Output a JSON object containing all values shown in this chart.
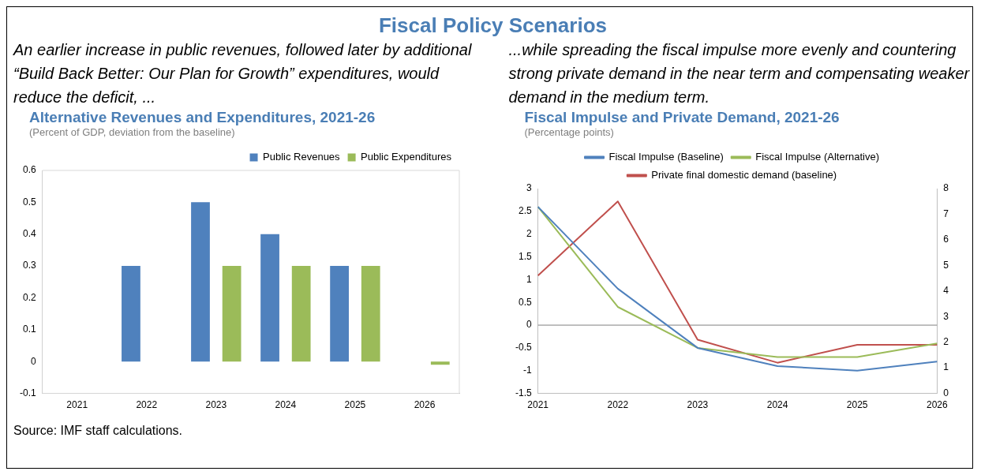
{
  "chart_data": [
    {
      "type": "other",
      "title": "Fiscal Policy Scenarios"
    },
    {
      "type": "bar",
      "title": "Alternative Revenues and Expenditures, 2021-26",
      "subtitle": "(Percent of GDP, deviation from the baseline)",
      "annotations": [
        "An earlier increase in public revenues, followed later by additional “Build Back Better: Our Plan for Growth” expenditures, would reduce the deficit, ...",
        "Source: IMF staff calculations."
      ],
      "categories": [
        "2021",
        "2022",
        "2023",
        "2024",
        "2025",
        "2026"
      ],
      "series": [
        {
          "name": "Public Revenues",
          "color": "#4f81bd",
          "values": [
            0,
            0.3,
            0.5,
            0.4,
            0.3,
            0
          ]
        },
        {
          "name": "Public Expenditures",
          "color": "#9bbb59",
          "values": [
            0,
            0,
            0.3,
            0.3,
            0.3,
            -0.01
          ]
        }
      ],
      "ylim": [
        -0.1,
        0.6
      ],
      "yticks": [
        -0.1,
        0,
        0.1,
        0.2,
        0.3,
        0.4,
        0.5,
        0.6
      ],
      "legend": "top right"
    },
    {
      "type": "line",
      "title": "Fiscal Impulse and Private Demand, 2021-26",
      "subtitle": "(Percentage points)",
      "annotations": [
        "...while spreading the fiscal impulse more evenly and countering strong private demand in the near term and compensating weaker demand in the medium term."
      ],
      "categories": [
        "2021",
        "2022",
        "2023",
        "2024",
        "2025",
        "2026"
      ],
      "series": [
        {
          "name": "Fiscal Impulse (Baseline)",
          "color": "#4f81bd",
          "values": [
            2.6,
            0.8,
            -0.5,
            -0.9,
            -1.0,
            -0.8
          ]
        },
        {
          "name": "Fiscal Impulse (Alternative)",
          "color": "#9bbb59",
          "values": [
            2.6,
            0.4,
            -0.5,
            -0.7,
            -0.7,
            -0.4
          ]
        },
        {
          "name": "Private final domestic demand (baseline)",
          "color": "#c0504d",
          "values": [
            4.6,
            7.5,
            2.1,
            1.2,
            1.9,
            1.9
          ],
          "axis": "y2"
        }
      ],
      "ylim": [
        -1.5,
        3
      ],
      "yticks": [
        -1.5,
        -1,
        -0.5,
        0,
        0.5,
        1,
        1.5,
        2,
        2.5,
        3
      ],
      "y2lim": [
        0,
        8
      ],
      "y2ticks": [
        0,
        1,
        2,
        3,
        4,
        5,
        6,
        7,
        8
      ],
      "legend": "top",
      "ref_lines": [
        {
          "axis": "y",
          "value": 0,
          "color": "#808080"
        }
      ]
    }
  ]
}
